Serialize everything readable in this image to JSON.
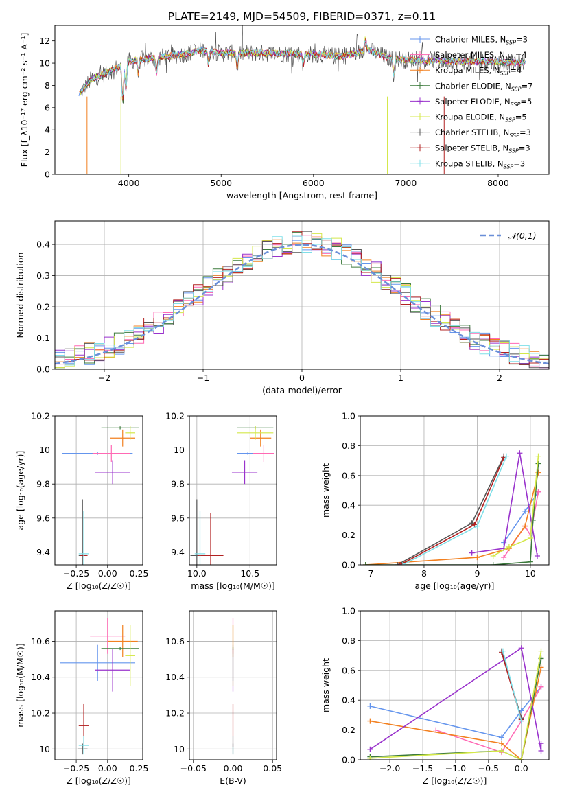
{
  "figure": {
    "title": "PLATE=2149, MJD=54509, FIBERID=0371, z=0.11"
  },
  "colors": {
    "axis": "#000000",
    "grid": "#b0b0b0"
  },
  "chart_data": [
    {
      "id": "spectrum",
      "type": "line",
      "title": "PLATE=2149, MJD=54509, FIBERID=0371, z=0.11",
      "xlabel": "wavelength [Angstrom, rest frame]",
      "ylabel": "Flux [f_λ10⁻¹⁷ erg cm⁻² s⁻¹ A⁻¹]",
      "xlim": [
        3200,
        8550
      ],
      "ylim": [
        0,
        13.4
      ],
      "xticks": [
        4000,
        5000,
        6000,
        7000,
        8000
      ],
      "yticks": [
        0,
        2,
        4,
        6,
        8,
        10,
        12
      ],
      "grid": false,
      "legend_position": "right",
      "series": [
        {
          "name": "Chabrier MILES, N_SSP=3",
          "color": "#6495ed",
          "marker": "+"
        },
        {
          "name": "Salpeter MILES, N_SSP=4",
          "color": "#ff69b4",
          "marker": "+"
        },
        {
          "name": "Kroupa MILES, N_SSP=4",
          "color": "#f28020",
          "marker": "+"
        },
        {
          "name": "Chabrier ELODIE, N_SSP=7",
          "color": "#3c7a3c",
          "marker": "+"
        },
        {
          "name": "Salpeter ELODIE, N_SSP=5",
          "color": "#9932cc",
          "marker": "+"
        },
        {
          "name": "Kroupa ELODIE, N_SSP=5",
          "color": "#d4e84a",
          "marker": "+"
        },
        {
          "name": "Chabrier STELIB, N_SSP=3",
          "color": "#555555",
          "marker": "+"
        },
        {
          "name": "Salpeter STELIB, N_SSP=3",
          "color": "#b22222",
          "marker": "+"
        },
        {
          "name": "Kroupa STELIB, N_SSP=3",
          "color": "#7fdfe8",
          "marker": "+"
        }
      ],
      "continuum": [
        [
          3460,
          7.2
        ],
        [
          3600,
          8.6
        ],
        [
          3700,
          8.9
        ],
        [
          3800,
          9.3
        ],
        [
          3900,
          9.7
        ],
        [
          4000,
          10.2
        ],
        [
          4300,
          10.5
        ],
        [
          4600,
          10.8
        ],
        [
          4800,
          11.2
        ],
        [
          5000,
          10.9
        ],
        [
          5500,
          10.9
        ],
        [
          6000,
          10.8
        ],
        [
          6300,
          10.6
        ],
        [
          6600,
          11.2
        ],
        [
          6800,
          10.5
        ],
        [
          7000,
          10.3
        ],
        [
          7500,
          10.2
        ],
        [
          8000,
          10.1
        ],
        [
          8300,
          10.0
        ]
      ]
    },
    {
      "id": "residuals",
      "type": "histogram",
      "xlabel": "(data-model)/error",
      "ylabel": "Normed distribution",
      "xlim": [
        -2.5,
        2.5
      ],
      "ylim": [
        0,
        0.475
      ],
      "xticks": [
        -2,
        -1,
        0,
        1,
        2
      ],
      "xtick_labels": [
        "−2",
        "−1",
        "0",
        "1",
        "2"
      ],
      "yticks": [
        0,
        0.1,
        0.2,
        0.3,
        0.4
      ],
      "yticks_labels": [
        "0.0",
        "0.1",
        "0.2",
        "0.3",
        "0.4"
      ],
      "grid": true,
      "bin_width": 0.1,
      "legend": "𝒩(0,1)",
      "legend_position": "top-right",
      "gaussian": {
        "mean": 0,
        "sigma": 1,
        "color": "#6a8fd8"
      }
    },
    {
      "id": "age-vs-Z",
      "type": "errorbar",
      "xlabel": "Z [log₁₀(Z/Z☉)]",
      "ylabel": "age [log₁₀(age/yr)]",
      "xlim": [
        -0.42,
        0.28
      ],
      "ylim": [
        9.325,
        10.2
      ],
      "xticks": [
        -0.25,
        0,
        0.25
      ],
      "xtick_labels": [
        "−0.25",
        "0.00",
        "0.25"
      ],
      "yticks": [
        9.4,
        9.6,
        9.8,
        10.0,
        10.2
      ],
      "grid": true,
      "points": [
        {
          "color": "#6495ed",
          "x": -0.08,
          "xerr": 0.28,
          "y": 9.98,
          "yerr": 0.0
        },
        {
          "color": "#ff69b4",
          "x": 0.03,
          "xerr": 0.15,
          "y": 9.98,
          "yerr": 0.05
        },
        {
          "color": "#f28020",
          "x": 0.12,
          "xerr": 0.1,
          "y": 10.07,
          "yerr": 0.05
        },
        {
          "color": "#3c7a3c",
          "x": 0.1,
          "xerr": 0.15,
          "y": 10.13,
          "yerr": 0.0
        },
        {
          "color": "#9932cc",
          "x": 0.04,
          "xerr": 0.14,
          "y": 9.87,
          "yerr": 0.07
        },
        {
          "color": "#d4e84a",
          "x": 0.18,
          "xerr": 0.04,
          "y": 10.1,
          "yerr": 0.04
        },
        {
          "color": "#555555",
          "x": -0.2,
          "xerr": 0.03,
          "y": 9.38,
          "yerr": 0.33
        },
        {
          "color": "#b22222",
          "x": -0.19,
          "xerr": 0.03,
          "y": 9.38,
          "yerr": 0.0
        },
        {
          "color": "#7fdfe8",
          "x": -0.19,
          "xerr": 0.04,
          "y": 9.39,
          "yerr": 0.25
        }
      ]
    },
    {
      "id": "age-vs-mass",
      "type": "errorbar",
      "xlabel": "mass [log₁₀(M/M☉)]",
      "xlim": [
        9.93,
        10.75
      ],
      "ylim": [
        9.325,
        10.2
      ],
      "xticks": [
        10.0,
        10.5
      ],
      "xtick_labels": [
        "10.0",
        "10.5"
      ],
      "yticks": [
        9.4,
        9.6,
        9.8,
        10.0,
        10.2
      ],
      "grid": true,
      "points": [
        {
          "color": "#6495ed",
          "x": 10.48,
          "xerr": 0.1,
          "y": 9.98,
          "yerr": 0.0
        },
        {
          "color": "#ff69b4",
          "x": 10.63,
          "xerr": 0.1,
          "y": 9.98,
          "yerr": 0.05
        },
        {
          "color": "#f28020",
          "x": 10.6,
          "xerr": 0.1,
          "y": 10.07,
          "yerr": 0.05
        },
        {
          "color": "#3c7a3c",
          "x": 10.55,
          "xerr": 0.17,
          "y": 10.13,
          "yerr": 0.0
        },
        {
          "color": "#9932cc",
          "x": 10.45,
          "xerr": 0.12,
          "y": 9.87,
          "yerr": 0.07
        },
        {
          "color": "#d4e84a",
          "x": 10.55,
          "xerr": 0.17,
          "y": 10.1,
          "yerr": 0.04
        },
        {
          "color": "#555555",
          "x": 10.0,
          "xerr": 0.06,
          "y": 9.38,
          "yerr": 0.33
        },
        {
          "color": "#b22222",
          "x": 10.13,
          "xerr": 0.12,
          "y": 9.38,
          "yerr": 0.25
        },
        {
          "color": "#7fdfe8",
          "x": 10.03,
          "xerr": 0.05,
          "y": 9.39,
          "yerr": 0.25
        }
      ]
    },
    {
      "id": "weight-vs-age",
      "type": "line",
      "xlabel": "age [log₁₀(age/yr)]",
      "ylabel": "mass weight",
      "xlim": [
        6.8,
        10.35
      ],
      "ylim": [
        0,
        1.0
      ],
      "xticks": [
        7,
        8,
        9,
        10
      ],
      "yticks": [
        0,
        0.2,
        0.4,
        0.6,
        0.8,
        1.0
      ],
      "yticks_labels": [
        "0.0",
        "0.2",
        "0.4",
        "0.6",
        "0.8",
        "1.0"
      ],
      "grid": true,
      "series": [
        {
          "color": "#6495ed",
          "x": [
            9.5,
            9.9,
            10.15
          ],
          "y": [
            0.15,
            0.36,
            0.49
          ]
        },
        {
          "color": "#ff69b4",
          "x": [
            9.5,
            9.9,
            10.0,
            10.15
          ],
          "y": [
            0.05,
            0.26,
            0.2,
            0.49
          ]
        },
        {
          "color": "#f28020",
          "x": [
            6.9,
            9.0,
            9.6,
            9.9,
            10.15
          ],
          "y": [
            0.0,
            0.05,
            0.11,
            0.26,
            0.62
          ]
        },
        {
          "color": "#3c7a3c",
          "x": [
            6.9,
            9.3,
            10.0,
            10.05,
            10.15
          ],
          "y": [
            0.0,
            0.0,
            0.02,
            0.3,
            0.68
          ]
        },
        {
          "color": "#9932cc",
          "x": [
            8.9,
            9.5,
            9.8,
            10.13
          ],
          "y": [
            0.08,
            0.11,
            0.75,
            0.06
          ]
        },
        {
          "color": "#d4e84a",
          "x": [
            9.3,
            9.6,
            10.0,
            10.15
          ],
          "y": [
            0.06,
            0.12,
            0.18,
            0.73
          ]
        },
        {
          "color": "#555555",
          "x": [
            7.5,
            8.9,
            9.5
          ],
          "y": [
            0.0,
            0.28,
            0.73
          ]
        },
        {
          "color": "#b22222",
          "x": [
            7.55,
            8.95,
            9.5
          ],
          "y": [
            0.0,
            0.27,
            0.72
          ]
        },
        {
          "color": "#7fdfe8",
          "x": [
            7.6,
            9.0,
            9.55
          ],
          "y": [
            0.0,
            0.26,
            0.73
          ]
        }
      ]
    },
    {
      "id": "mass-vs-Z",
      "type": "errorbar",
      "xlabel": "Z [log₁₀(Z/Z☉)]",
      "ylabel": "mass [log₁₀(M/M☉)]",
      "xlim": [
        -0.42,
        0.28
      ],
      "ylim": [
        9.94,
        10.77
      ],
      "xticks": [
        -0.25,
        0,
        0.25
      ],
      "xtick_labels": [
        "−0.25",
        "0.00",
        "0.25"
      ],
      "yticks": [
        10.0,
        10.2,
        10.4,
        10.6
      ],
      "grid": true,
      "points": [
        {
          "color": "#6495ed",
          "x": -0.08,
          "xerr": 0.3,
          "y": 10.48,
          "yerr": 0.1
        },
        {
          "color": "#ff69b4",
          "x": 0.0,
          "xerr": 0.14,
          "y": 10.63,
          "yerr": 0.1
        },
        {
          "color": "#f28020",
          "x": 0.12,
          "xerr": 0.12,
          "y": 10.6,
          "yerr": 0.09
        },
        {
          "color": "#3c7a3c",
          "x": 0.1,
          "xerr": 0.15,
          "y": 10.56,
          "yerr": 0.0
        },
        {
          "color": "#9932cc",
          "x": 0.04,
          "xerr": 0.14,
          "y": 10.44,
          "yerr": 0.12
        },
        {
          "color": "#d4e84a",
          "x": 0.18,
          "xerr": 0.04,
          "y": 10.52,
          "yerr": 0.17
        },
        {
          "color": "#555555",
          "x": -0.2,
          "xerr": 0.04,
          "y": 10.0,
          "yerr": 0.03
        },
        {
          "color": "#b22222",
          "x": -0.19,
          "xerr": 0.04,
          "y": 10.13,
          "yerr": 0.12
        },
        {
          "color": "#7fdfe8",
          "x": -0.19,
          "xerr": 0.04,
          "y": 10.02,
          "yerr": 0.05
        }
      ]
    },
    {
      "id": "mass-vs-EBV",
      "type": "errorbar",
      "xlabel": "E(B-V)",
      "xlim": [
        -0.055,
        0.055
      ],
      "ylim": [
        9.94,
        10.77
      ],
      "xticks": [
        -0.05,
        0,
        0.05
      ],
      "xtick_labels": [
        "−0.05",
        "0.00",
        "0.05"
      ],
      "yticks": [
        10.0,
        10.2,
        10.4,
        10.6
      ],
      "grid": true,
      "points": [
        {
          "color": "#6495ed",
          "x": 0,
          "xerr": 0,
          "y": 10.48,
          "yerr": 0.1
        },
        {
          "color": "#ff69b4",
          "x": 0,
          "xerr": 0,
          "y": 10.63,
          "yerr": 0.1
        },
        {
          "color": "#f28020",
          "x": 0,
          "xerr": 0,
          "y": 10.6,
          "yerr": 0.09
        },
        {
          "color": "#3c7a3c",
          "x": 0,
          "xerr": 0,
          "y": 10.56,
          "yerr": 0.0
        },
        {
          "color": "#9932cc",
          "x": 0,
          "xerr": 0,
          "y": 10.44,
          "yerr": 0.12
        },
        {
          "color": "#d4e84a",
          "x": 0,
          "xerr": 0,
          "y": 10.52,
          "yerr": 0.17
        },
        {
          "color": "#555555",
          "x": 0,
          "xerr": 0,
          "y": 10.0,
          "yerr": 0.03
        },
        {
          "color": "#b22222",
          "x": 0,
          "xerr": 0,
          "y": 10.13,
          "yerr": 0.12
        },
        {
          "color": "#7fdfe8",
          "x": 0,
          "xerr": 0,
          "y": 10.02,
          "yerr": 0.05
        }
      ]
    },
    {
      "id": "weight-vs-Z",
      "type": "line",
      "xlabel": "Z [log₁₀(Z/Z☉)]",
      "ylabel": "mass weight",
      "xlim": [
        -2.45,
        0.42
      ],
      "ylim": [
        0,
        1.0
      ],
      "xticks": [
        -2.0,
        -1.5,
        -1.0,
        -0.5,
        0.0
      ],
      "xtick_labels": [
        "−2.0",
        "−1.5",
        "−1.0",
        "−0.5",
        "0.0"
      ],
      "yticks": [
        0,
        0.2,
        0.4,
        0.6,
        0.8,
        1.0
      ],
      "yticks_labels": [
        "0.0",
        "0.2",
        "0.4",
        "0.6",
        "0.8",
        "1.0"
      ],
      "grid": true,
      "series": [
        {
          "color": "#6495ed",
          "x": [
            -2.3,
            -0.3,
            0.0,
            0.3
          ],
          "y": [
            0.36,
            0.15,
            0.33,
            0.49
          ]
        },
        {
          "color": "#ff69b4",
          "x": [
            -1.3,
            -0.3,
            0.0,
            0.3
          ],
          "y": [
            0.2,
            0.05,
            0.26,
            0.49
          ]
        },
        {
          "color": "#f28020",
          "x": [
            -2.3,
            -0.3,
            0.0,
            0.3
          ],
          "y": [
            0.26,
            0.11,
            0.0,
            0.62
          ]
        },
        {
          "color": "#3c7a3c",
          "x": [
            -2.3,
            -0.3,
            0.0,
            0.3
          ],
          "y": [
            0.02,
            0.06,
            0.0,
            0.68
          ]
        },
        {
          "color": "#9932cc",
          "x": [
            -2.3,
            0.0,
            0.3,
            0.3
          ],
          "y": [
            0.07,
            0.75,
            0.06,
            0.11
          ]
        },
        {
          "color": "#d4e84a",
          "x": [
            -2.3,
            -0.3,
            0.0,
            0.3
          ],
          "y": [
            0.01,
            0.06,
            0.0,
            0.73
          ]
        },
        {
          "color": "#555555",
          "x": [
            -0.3,
            0.0
          ],
          "y": [
            0.73,
            0.28
          ]
        },
        {
          "color": "#b22222",
          "x": [
            -0.3,
            0.0
          ],
          "y": [
            0.72,
            0.27
          ]
        },
        {
          "color": "#7fdfe8",
          "x": [
            -0.28,
            0.0
          ],
          "y": [
            0.73,
            0.26
          ]
        }
      ]
    }
  ]
}
